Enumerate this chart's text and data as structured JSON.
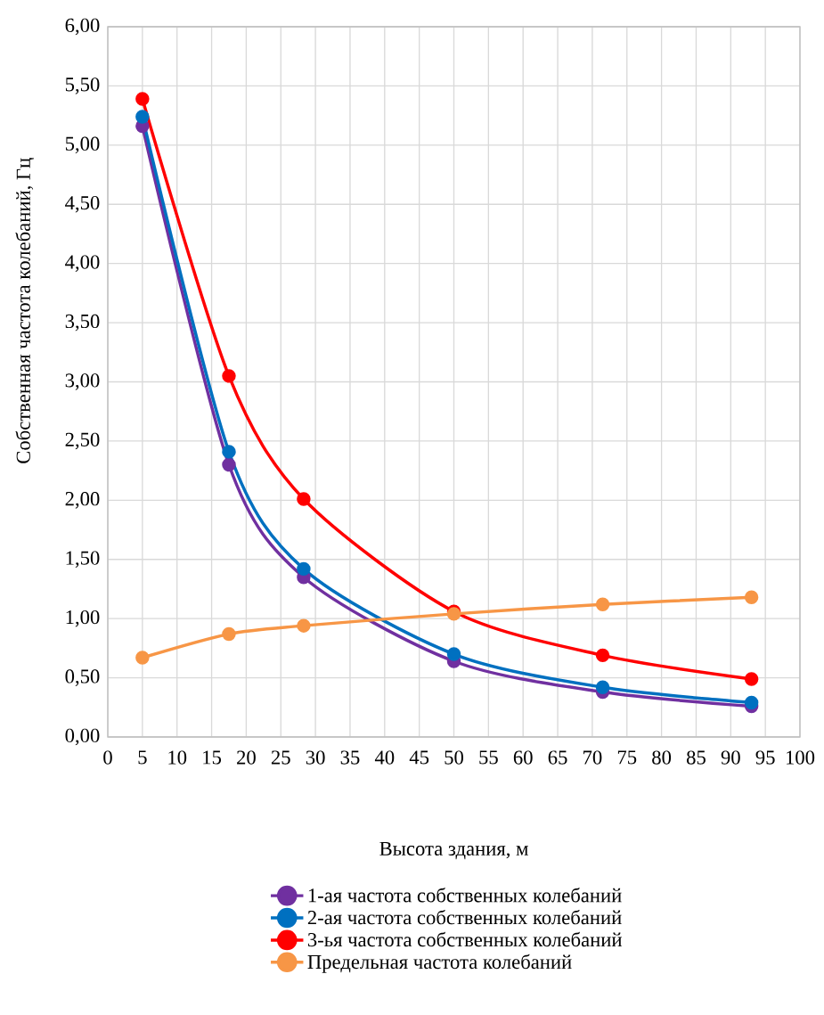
{
  "chart_data": {
    "type": "line",
    "xlabel": "Высота здания, м",
    "ylabel": "Собственная частота колебаний, Гц",
    "x": [
      5,
      17.5,
      28.3,
      50,
      71.5,
      93
    ],
    "series": [
      {
        "name": "1-ая частота собственных колебаний",
        "color": "#7030a0",
        "values": [
          5.16,
          2.3,
          1.35,
          0.64,
          0.38,
          0.26
        ]
      },
      {
        "name": "2-ая частота собственных колебаний",
        "color": "#0070c0",
        "values": [
          5.24,
          2.41,
          1.42,
          0.7,
          0.42,
          0.29
        ]
      },
      {
        "name": "3-ья частота собственных колебаний",
        "color": "#ff0000",
        "values": [
          5.39,
          3.05,
          2.01,
          1.06,
          0.69,
          0.49
        ]
      },
      {
        "name": "Предельная частота колебаний",
        "color": "#f79646",
        "values": [
          0.67,
          0.87,
          0.94,
          1.04,
          1.12,
          1.18
        ]
      }
    ],
    "xlim": [
      0,
      100
    ],
    "xticks": [
      0,
      5,
      10,
      15,
      20,
      25,
      30,
      35,
      40,
      45,
      50,
      55,
      60,
      65,
      70,
      75,
      80,
      85,
      90,
      95,
      100
    ],
    "ylim": [
      0,
      6
    ],
    "yticks": [
      {
        "value": 0,
        "label": "0,00"
      },
      {
        "value": 0.5,
        "label": "0,50"
      },
      {
        "value": 1,
        "label": "1,00"
      },
      {
        "value": 1.5,
        "label": "1,50"
      },
      {
        "value": 2,
        "label": "2,00"
      },
      {
        "value": 2.5,
        "label": "2,50"
      },
      {
        "value": 3,
        "label": "3,00"
      },
      {
        "value": 3.5,
        "label": "3,50"
      },
      {
        "value": 4,
        "label": "4,00"
      },
      {
        "value": 4.5,
        "label": "4,50"
      },
      {
        "value": 5,
        "label": "5,00"
      },
      {
        "value": 5.5,
        "label": "5,50"
      },
      {
        "value": 6,
        "label": "6,00"
      }
    ],
    "grid": true,
    "legend": "bottom",
    "marker": "circle",
    "line_style": "solid"
  }
}
